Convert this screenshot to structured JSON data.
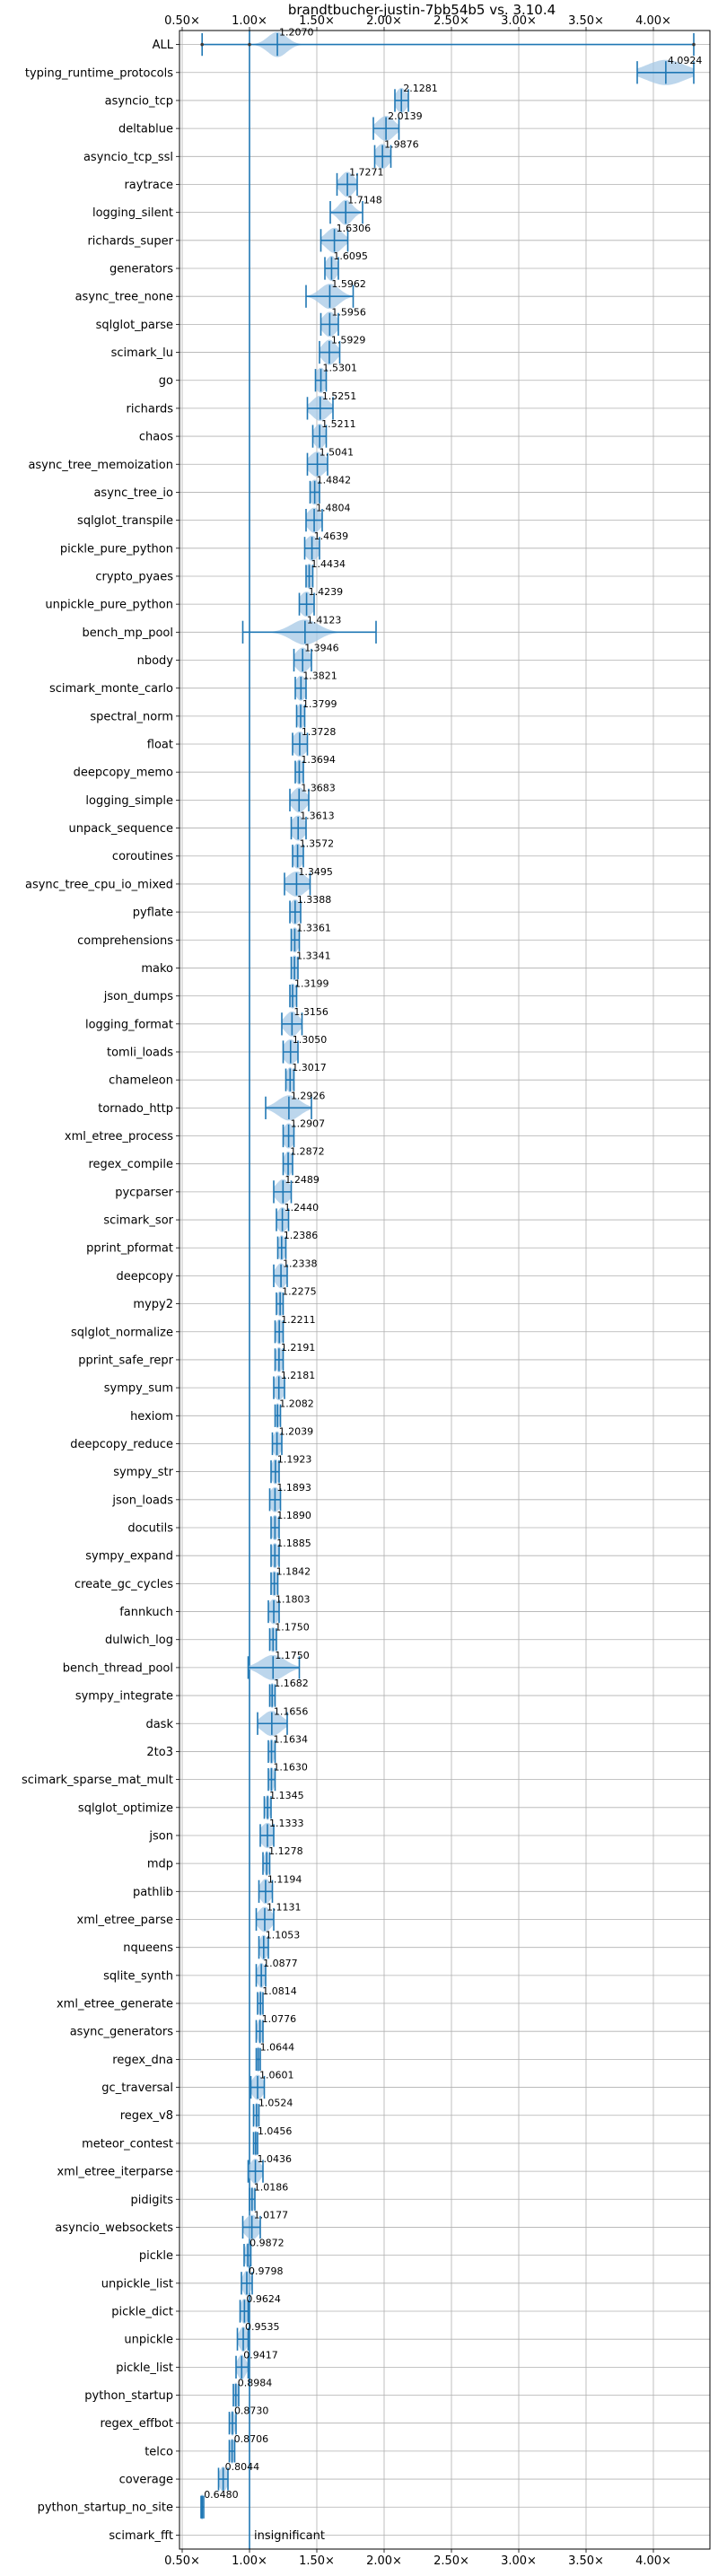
{
  "chart_data": {
    "type": "violin",
    "title": "brandtbucher-justin-7bb54b5 vs. 3.10.4",
    "xlabel": "",
    "ylabel": "",
    "xlim": [
      0.48,
      4.42
    ],
    "x_ticks": [
      {
        "value": 0.5,
        "label": "0.50×"
      },
      {
        "value": 1.0,
        "label": "1.00×"
      },
      {
        "value": 1.5,
        "label": "1.50×"
      },
      {
        "value": 2.0,
        "label": "2.00×"
      },
      {
        "value": 2.5,
        "label": "2.50×"
      },
      {
        "value": 3.0,
        "label": "3.00×"
      },
      {
        "value": 3.5,
        "label": "3.50×"
      },
      {
        "value": 4.0,
        "label": "4.00×"
      }
    ],
    "reference_line": 1.0,
    "grid": true,
    "colors": {
      "violin": "#a6c8e6",
      "marker": "#1f77b4",
      "grid": "#b0b0b0"
    },
    "benchmarks": [
      {
        "name": "ALL",
        "value": 1.207,
        "label": "1.2070",
        "min": 0.648,
        "max": 4.3,
        "spread": 0.07,
        "dots": [
          0.648,
          1.0,
          4.3
        ]
      },
      {
        "name": "typing_runtime_protocols",
        "value": 4.0924,
        "label": "4.0924",
        "min": 3.88,
        "max": 4.3,
        "spread": 0.14
      },
      {
        "name": "asyncio_tcp",
        "value": 2.1281,
        "label": "2.1281",
        "min": 2.08,
        "max": 2.18,
        "spread": 0.04
      },
      {
        "name": "deltablue",
        "value": 2.0139,
        "label": "2.0139",
        "min": 1.92,
        "max": 2.11,
        "spread": 0.06
      },
      {
        "name": "asyncio_tcp_ssl",
        "value": 1.9876,
        "label": "1.9876",
        "min": 1.93,
        "max": 2.05,
        "spread": 0.05
      },
      {
        "name": "raytrace",
        "value": 1.7271,
        "label": "1.7271",
        "min": 1.65,
        "max": 1.8,
        "spread": 0.05
      },
      {
        "name": "logging_silent",
        "value": 1.7148,
        "label": "1.7148",
        "min": 1.6,
        "max": 1.84,
        "spread": 0.05
      },
      {
        "name": "richards_super",
        "value": 1.6306,
        "label": "1.6306",
        "min": 1.53,
        "max": 1.73,
        "spread": 0.06
      },
      {
        "name": "generators",
        "value": 1.6095,
        "label": "1.6095",
        "min": 1.56,
        "max": 1.66,
        "spread": 0.04
      },
      {
        "name": "async_tree_none",
        "value": 1.5962,
        "label": "1.5962",
        "min": 1.42,
        "max": 1.77,
        "spread": 0.07
      },
      {
        "name": "sqlglot_parse",
        "value": 1.5956,
        "label": "1.5956",
        "min": 1.53,
        "max": 1.66,
        "spread": 0.05
      },
      {
        "name": "scimark_lu",
        "value": 1.5929,
        "label": "1.5929",
        "min": 1.52,
        "max": 1.67,
        "spread": 0.05
      },
      {
        "name": "go",
        "value": 1.5301,
        "label": "1.5301",
        "min": 1.49,
        "max": 1.57,
        "spread": 0.04
      },
      {
        "name": "richards",
        "value": 1.5251,
        "label": "1.5251",
        "min": 1.43,
        "max": 1.62,
        "spread": 0.06
      },
      {
        "name": "chaos",
        "value": 1.5211,
        "label": "1.5211",
        "min": 1.47,
        "max": 1.57,
        "spread": 0.04
      },
      {
        "name": "async_tree_memoization",
        "value": 1.5041,
        "label": "1.5041",
        "min": 1.43,
        "max": 1.58,
        "spread": 0.06
      },
      {
        "name": "async_tree_io",
        "value": 1.4842,
        "label": "1.4842",
        "min": 1.45,
        "max": 1.52,
        "spread": 0.04
      },
      {
        "name": "sqlglot_transpile",
        "value": 1.4804,
        "label": "1.4804",
        "min": 1.42,
        "max": 1.54,
        "spread": 0.05
      },
      {
        "name": "pickle_pure_python",
        "value": 1.4639,
        "label": "1.4639",
        "min": 1.41,
        "max": 1.52,
        "spread": 0.05
      },
      {
        "name": "crypto_pyaes",
        "value": 1.4434,
        "label": "1.4434",
        "min": 1.42,
        "max": 1.47,
        "spread": 0.03
      },
      {
        "name": "unpickle_pure_python",
        "value": 1.4239,
        "label": "1.4239",
        "min": 1.37,
        "max": 1.48,
        "spread": 0.05
      },
      {
        "name": "bench_mp_pool",
        "value": 1.4123,
        "label": "1.4123",
        "min": 0.95,
        "max": 1.94,
        "spread": 0.1
      },
      {
        "name": "nbody",
        "value": 1.3946,
        "label": "1.3946",
        "min": 1.33,
        "max": 1.46,
        "spread": 0.05
      },
      {
        "name": "scimark_monte_carlo",
        "value": 1.3821,
        "label": "1.3821",
        "min": 1.34,
        "max": 1.42,
        "spread": 0.04
      },
      {
        "name": "spectral_norm",
        "value": 1.3799,
        "label": "1.3799",
        "min": 1.35,
        "max": 1.41,
        "spread": 0.03
      },
      {
        "name": "float",
        "value": 1.3728,
        "label": "1.3728",
        "min": 1.32,
        "max": 1.43,
        "spread": 0.05
      },
      {
        "name": "deepcopy_memo",
        "value": 1.3694,
        "label": "1.3694",
        "min": 1.34,
        "max": 1.4,
        "spread": 0.03
      },
      {
        "name": "logging_simple",
        "value": 1.3683,
        "label": "1.3683",
        "min": 1.3,
        "max": 1.44,
        "spread": 0.05
      },
      {
        "name": "unpack_sequence",
        "value": 1.3613,
        "label": "1.3613",
        "min": 1.31,
        "max": 1.42,
        "spread": 0.05
      },
      {
        "name": "coroutines",
        "value": 1.3572,
        "label": "1.3572",
        "min": 1.32,
        "max": 1.4,
        "spread": 0.04
      },
      {
        "name": "async_tree_cpu_io_mixed",
        "value": 1.3495,
        "label": "1.3495",
        "min": 1.26,
        "max": 1.45,
        "spread": 0.07
      },
      {
        "name": "pyflate",
        "value": 1.3388,
        "label": "1.3388",
        "min": 1.3,
        "max": 1.38,
        "spread": 0.04
      },
      {
        "name": "comprehensions",
        "value": 1.3361,
        "label": "1.3361",
        "min": 1.31,
        "max": 1.37,
        "spread": 0.03
      },
      {
        "name": "mako",
        "value": 1.3341,
        "label": "1.3341",
        "min": 1.31,
        "max": 1.36,
        "spread": 0.03
      },
      {
        "name": "json_dumps",
        "value": 1.3199,
        "label": "1.3199",
        "min": 1.3,
        "max": 1.35,
        "spread": 0.03
      },
      {
        "name": "logging_format",
        "value": 1.3156,
        "label": "1.3156",
        "min": 1.24,
        "max": 1.39,
        "spread": 0.05
      },
      {
        "name": "tomli_loads",
        "value": 1.305,
        "label": "1.3050",
        "min": 1.25,
        "max": 1.36,
        "spread": 0.05
      },
      {
        "name": "chameleon",
        "value": 1.3017,
        "label": "1.3017",
        "min": 1.27,
        "max": 1.33,
        "spread": 0.03
      },
      {
        "name": "tornado_http",
        "value": 1.2926,
        "label": "1.2926",
        "min": 1.12,
        "max": 1.46,
        "spread": 0.08
      },
      {
        "name": "xml_etree_process",
        "value": 1.2907,
        "label": "1.2907",
        "min": 1.25,
        "max": 1.33,
        "spread": 0.04
      },
      {
        "name": "regex_compile",
        "value": 1.2872,
        "label": "1.2872",
        "min": 1.25,
        "max": 1.32,
        "spread": 0.03
      },
      {
        "name": "pycparser",
        "value": 1.2489,
        "label": "1.2489",
        "min": 1.18,
        "max": 1.31,
        "spread": 0.05
      },
      {
        "name": "scimark_sor",
        "value": 1.244,
        "label": "1.2440",
        "min": 1.2,
        "max": 1.29,
        "spread": 0.04
      },
      {
        "name": "pprint_pformat",
        "value": 1.2386,
        "label": "1.2386",
        "min": 1.21,
        "max": 1.27,
        "spread": 0.03
      },
      {
        "name": "deepcopy",
        "value": 1.2338,
        "label": "1.2338",
        "min": 1.18,
        "max": 1.28,
        "spread": 0.04
      },
      {
        "name": "mypy2",
        "value": 1.2275,
        "label": "1.2275",
        "min": 1.2,
        "max": 1.25,
        "spread": 0.03
      },
      {
        "name": "sqlglot_normalize",
        "value": 1.2211,
        "label": "1.2211",
        "min": 1.19,
        "max": 1.25,
        "spread": 0.03
      },
      {
        "name": "pprint_safe_repr",
        "value": 1.2191,
        "label": "1.2191",
        "min": 1.19,
        "max": 1.25,
        "spread": 0.03
      },
      {
        "name": "sympy_sum",
        "value": 1.2181,
        "label": "1.2181",
        "min": 1.18,
        "max": 1.26,
        "spread": 0.04
      },
      {
        "name": "hexiom",
        "value": 1.2082,
        "label": "1.2082",
        "min": 1.19,
        "max": 1.23,
        "spread": 0.02
      },
      {
        "name": "deepcopy_reduce",
        "value": 1.2039,
        "label": "1.2039",
        "min": 1.17,
        "max": 1.24,
        "spread": 0.03
      },
      {
        "name": "sympy_str",
        "value": 1.1923,
        "label": "1.1923",
        "min": 1.16,
        "max": 1.22,
        "spread": 0.03
      },
      {
        "name": "json_loads",
        "value": 1.1893,
        "label": "1.1893",
        "min": 1.15,
        "max": 1.23,
        "spread": 0.04
      },
      {
        "name": "docutils",
        "value": 1.189,
        "label": "1.1890",
        "min": 1.16,
        "max": 1.22,
        "spread": 0.03
      },
      {
        "name": "sympy_expand",
        "value": 1.1885,
        "label": "1.1885",
        "min": 1.16,
        "max": 1.22,
        "spread": 0.03
      },
      {
        "name": "create_gc_cycles",
        "value": 1.1842,
        "label": "1.1842",
        "min": 1.16,
        "max": 1.21,
        "spread": 0.03
      },
      {
        "name": "fannkuch",
        "value": 1.1803,
        "label": "1.1803",
        "min": 1.14,
        "max": 1.22,
        "spread": 0.04
      },
      {
        "name": "dulwich_log",
        "value": 1.175,
        "label": "1.1750",
        "min": 1.15,
        "max": 1.2,
        "spread": 0.03
      },
      {
        "name": "bench_thread_pool",
        "value": 1.175,
        "label": "1.1750",
        "min": 0.99,
        "max": 1.37,
        "spread": 0.09
      },
      {
        "name": "sympy_integrate",
        "value": 1.1682,
        "label": "1.1682",
        "min": 1.15,
        "max": 1.19,
        "spread": 0.02
      },
      {
        "name": "dask",
        "value": 1.1656,
        "label": "1.1656",
        "min": 1.06,
        "max": 1.28,
        "spread": 0.07
      },
      {
        "name": "2to3",
        "value": 1.1634,
        "label": "1.1634",
        "min": 1.14,
        "max": 1.19,
        "spread": 0.02
      },
      {
        "name": "scimark_sparse_mat_mult",
        "value": 1.163,
        "label": "1.1630",
        "min": 1.14,
        "max": 1.19,
        "spread": 0.02
      },
      {
        "name": "sqlglot_optimize",
        "value": 1.1345,
        "label": "1.1345",
        "min": 1.11,
        "max": 1.16,
        "spread": 0.02
      },
      {
        "name": "json",
        "value": 1.1333,
        "label": "1.1333",
        "min": 1.08,
        "max": 1.18,
        "spread": 0.05
      },
      {
        "name": "mdp",
        "value": 1.1278,
        "label": "1.1278",
        "min": 1.1,
        "max": 1.15,
        "spread": 0.02
      },
      {
        "name": "pathlib",
        "value": 1.1194,
        "label": "1.1194",
        "min": 1.07,
        "max": 1.17,
        "spread": 0.04
      },
      {
        "name": "xml_etree_parse",
        "value": 1.1131,
        "label": "1.1131",
        "min": 1.05,
        "max": 1.18,
        "spread": 0.05
      },
      {
        "name": "nqueens",
        "value": 1.1053,
        "label": "1.1053",
        "min": 1.07,
        "max": 1.14,
        "spread": 0.03
      },
      {
        "name": "sqlite_synth",
        "value": 1.0877,
        "label": "1.0877",
        "min": 1.05,
        "max": 1.12,
        "spread": 0.03
      },
      {
        "name": "xml_etree_generate",
        "value": 1.0814,
        "label": "1.0814",
        "min": 1.06,
        "max": 1.1,
        "spread": 0.02
      },
      {
        "name": "async_generators",
        "value": 1.0776,
        "label": "1.0776",
        "min": 1.05,
        "max": 1.1,
        "spread": 0.02
      },
      {
        "name": "regex_dna",
        "value": 1.0644,
        "label": "1.0644",
        "min": 1.05,
        "max": 1.08,
        "spread": 0.02
      },
      {
        "name": "gc_traversal",
        "value": 1.0601,
        "label": "1.0601",
        "min": 1.01,
        "max": 1.11,
        "spread": 0.04
      },
      {
        "name": "regex_v8",
        "value": 1.0524,
        "label": "1.0524",
        "min": 1.03,
        "max": 1.07,
        "spread": 0.02
      },
      {
        "name": "meteor_contest",
        "value": 1.0456,
        "label": "1.0456",
        "min": 1.03,
        "max": 1.06,
        "spread": 0.02
      },
      {
        "name": "xml_etree_iterparse",
        "value": 1.0436,
        "label": "1.0436",
        "min": 0.99,
        "max": 1.1,
        "spread": 0.04
      },
      {
        "name": "pidigits",
        "value": 1.0186,
        "label": "1.0186",
        "min": 1.0,
        "max": 1.04,
        "spread": 0.02
      },
      {
        "name": "asyncio_websockets",
        "value": 1.0177,
        "label": "1.0177",
        "min": 0.95,
        "max": 1.08,
        "spread": 0.05
      },
      {
        "name": "pickle",
        "value": 0.9872,
        "label": "0.9872",
        "min": 0.96,
        "max": 1.01,
        "spread": 0.02
      },
      {
        "name": "unpickle_list",
        "value": 0.9798,
        "label": "0.9798",
        "min": 0.94,
        "max": 1.02,
        "spread": 0.03
      },
      {
        "name": "pickle_dict",
        "value": 0.9624,
        "label": "0.9624",
        "min": 0.93,
        "max": 0.99,
        "spread": 0.03
      },
      {
        "name": "unpickle",
        "value": 0.9535,
        "label": "0.9535",
        "min": 0.91,
        "max": 0.99,
        "spread": 0.03
      },
      {
        "name": "pickle_list",
        "value": 0.9417,
        "label": "0.9417",
        "min": 0.9,
        "max": 0.99,
        "spread": 0.03
      },
      {
        "name": "python_startup",
        "value": 0.8984,
        "label": "0.8984",
        "min": 0.88,
        "max": 0.92,
        "spread": 0.02
      },
      {
        "name": "regex_effbot",
        "value": 0.873,
        "label": "0.8730",
        "min": 0.85,
        "max": 0.9,
        "spread": 0.02
      },
      {
        "name": "telco",
        "value": 0.8706,
        "label": "0.8706",
        "min": 0.85,
        "max": 0.89,
        "spread": 0.02
      },
      {
        "name": "coverage",
        "value": 0.8044,
        "label": "0.8044",
        "min": 0.77,
        "max": 0.84,
        "spread": 0.03
      },
      {
        "name": "python_startup_no_site",
        "value": 0.648,
        "label": "0.6480",
        "min": 0.64,
        "max": 0.66,
        "spread": 0.02
      },
      {
        "name": "scimark_fft",
        "value": null,
        "label": "insignificant"
      }
    ]
  }
}
